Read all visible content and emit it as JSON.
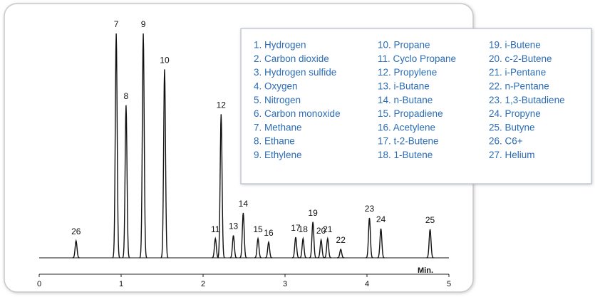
{
  "chart_data": {
    "type": "chromatogram",
    "x_label": "Min.",
    "xlim": [
      0,
      5
    ],
    "xticks": [
      0,
      1,
      2,
      3,
      4,
      5
    ],
    "ylim": [
      0,
      100
    ],
    "color": "#111111",
    "peaks": [
      {
        "label": "26",
        "x": 0.45,
        "height": 7.6
      },
      {
        "label": "7",
        "x": 0.94,
        "height": 100
      },
      {
        "label": "8",
        "x": 1.06,
        "height": 68
      },
      {
        "label": "9",
        "x": 1.27,
        "height": 100
      },
      {
        "label": "10",
        "x": 1.53,
        "height": 84
      },
      {
        "label": "11",
        "x": 2.15,
        "height": 8.6
      },
      {
        "label": "12",
        "x": 2.22,
        "height": 64
      },
      {
        "label": "13",
        "x": 2.37,
        "height": 10
      },
      {
        "label": "14",
        "x": 2.49,
        "height": 20
      },
      {
        "label": "15",
        "x": 2.67,
        "height": 8.6
      },
      {
        "label": "16",
        "x": 2.8,
        "height": 7
      },
      {
        "label": "17",
        "x": 3.13,
        "height": 9.2
      },
      {
        "label": "18",
        "x": 3.22,
        "height": 8.6
      },
      {
        "label": "19",
        "x": 3.34,
        "height": 16
      },
      {
        "label": "20",
        "x": 3.44,
        "height": 8
      },
      {
        "label": "21",
        "x": 3.52,
        "height": 8.6
      },
      {
        "label": "22",
        "x": 3.68,
        "height": 3.8
      },
      {
        "label": "23",
        "x": 4.03,
        "height": 17.8
      },
      {
        "label": "24",
        "x": 4.17,
        "height": 13
      },
      {
        "label": "25",
        "x": 4.77,
        "height": 12.7
      }
    ],
    "legend": [
      "1. Hydrogen",
      "2. Carbon dioxide",
      "3. Hydrogen sulfide",
      "4. Oxygen",
      "5. Nitrogen",
      "6. Carbon monoxide",
      "7. Methane",
      "8. Ethane",
      "9. Ethylene",
      "10. Propane",
      "11. Cyclo Propane",
      "12. Propylene",
      "13. i-Butane",
      "14. n-Butane",
      "15. Propadiene",
      "16. Acetylene",
      "17. t-2-Butene",
      "18. 1-Butene",
      "19. i-Butene",
      "20. c-2-Butene",
      "21. i-Pentane",
      "22. n-Pentane",
      "23. 1,3-Butadiene",
      "24. Propyne",
      "25. Butyne",
      "26. C6+",
      "27. Helium"
    ],
    "legend_color": "#2b6cb5"
  }
}
